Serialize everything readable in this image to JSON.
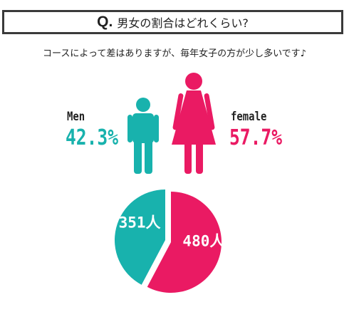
{
  "question": {
    "mark": "Q.",
    "text": "男女の割合はどれくらい?"
  },
  "subtitle": "コースによって差はありますが、毎年女子の方が少し多いです♪",
  "colors": {
    "men": "#18b2ad",
    "women": "#ea1a63"
  },
  "icons": {
    "men": "male-figure-icon",
    "women": "female-figure-icon"
  },
  "chart_data": {
    "type": "pie",
    "series": [
      {
        "name": "Men",
        "percent_label": "42.3%",
        "value": 351,
        "value_label": "351人",
        "percent": 42.3
      },
      {
        "name": "female",
        "percent_label": "57.7%",
        "value": 480,
        "value_label": "480人",
        "percent": 57.7
      }
    ]
  }
}
